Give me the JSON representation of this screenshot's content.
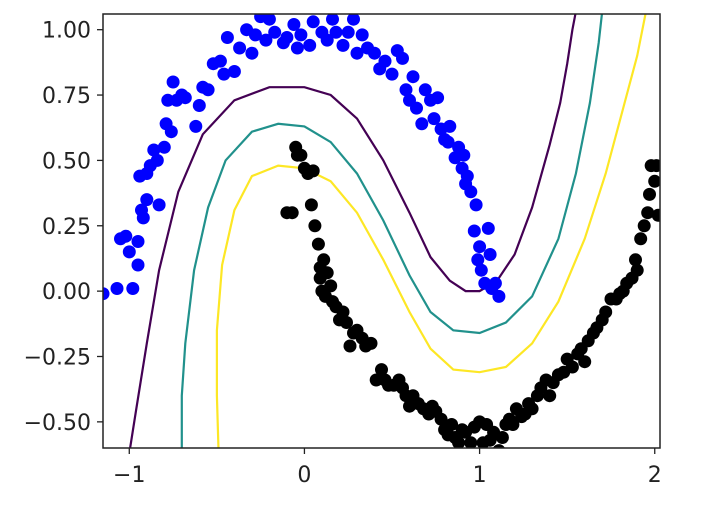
{
  "chart_data": {
    "type": "scatter",
    "title": "",
    "xlabel": "",
    "ylabel": "",
    "xlim": [
      -1.15,
      2.03
    ],
    "ylim": [
      -0.6,
      1.06
    ],
    "grid": false,
    "x_ticks": [
      -1,
      0,
      1,
      2
    ],
    "x_tick_labels": [
      "−1",
      "0",
      "1",
      "2"
    ],
    "y_ticks": [
      1.0,
      0.75,
      0.5,
      0.25,
      0.0,
      -0.25,
      -0.5
    ],
    "y_tick_labels": [
      "1.00",
      "0.75",
      "0.50",
      "0.25",
      "0.00",
      "−0.25",
      "−0.50"
    ],
    "colors": {
      "class_0": "#0000ff",
      "class_1": "#000000",
      "contour_low": "#440154",
      "contour_mid": "#21918c",
      "contour_high": "#fde725",
      "frame": "#222222"
    },
    "series": [
      {
        "points": [
          [
            -1.15,
            -0.01
          ],
          [
            -1.07,
            0.01
          ],
          [
            -1.05,
            0.2
          ],
          [
            -1.02,
            0.21
          ],
          [
            -1.0,
            0.15
          ],
          [
            -0.98,
            0.01
          ],
          [
            -0.95,
            0.19
          ],
          [
            -0.95,
            0.1
          ],
          [
            -0.94,
            0.44
          ],
          [
            -0.93,
            0.31
          ],
          [
            -0.92,
            0.28
          ],
          [
            -0.9,
            0.35
          ],
          [
            -0.9,
            0.45
          ],
          [
            -0.88,
            0.48
          ],
          [
            -0.86,
            0.54
          ],
          [
            -0.84,
            0.5
          ],
          [
            -0.83,
            0.33
          ],
          [
            -0.8,
            0.55
          ],
          [
            -0.79,
            0.64
          ],
          [
            -0.78,
            0.73
          ],
          [
            -0.76,
            0.61
          ],
          [
            -0.75,
            0.8
          ],
          [
            -0.73,
            0.73
          ],
          [
            -0.7,
            0.75
          ],
          [
            -0.68,
            0.74
          ],
          [
            -0.62,
            0.63
          ],
          [
            -0.6,
            0.71
          ],
          [
            -0.58,
            0.78
          ],
          [
            -0.55,
            0.77
          ],
          [
            -0.52,
            0.87
          ],
          [
            -0.48,
            0.88
          ],
          [
            -0.46,
            0.83
          ],
          [
            -0.44,
            0.97
          ],
          [
            -0.4,
            0.84
          ],
          [
            -0.37,
            0.93
          ],
          [
            -0.33,
            1.0
          ],
          [
            -0.3,
            0.91
          ],
          [
            -0.28,
            0.98
          ],
          [
            -0.25,
            1.05
          ],
          [
            -0.22,
            0.96
          ],
          [
            -0.2,
            1.04
          ],
          [
            -0.17,
            0.99
          ],
          [
            -0.12,
            0.95
          ],
          [
            -0.1,
            0.97
          ],
          [
            -0.06,
            1.02
          ],
          [
            -0.04,
            0.93
          ],
          [
            -0.02,
            0.98
          ],
          [
            0.03,
            0.94
          ],
          [
            0.05,
            1.03
          ],
          [
            0.1,
            0.99
          ],
          [
            0.13,
            0.96
          ],
          [
            0.16,
            1.04
          ],
          [
            0.18,
            0.99
          ],
          [
            0.22,
            0.94
          ],
          [
            0.25,
            0.99
          ],
          [
            0.28,
            1.04
          ],
          [
            0.3,
            0.91
          ],
          [
            0.33,
            0.98
          ],
          [
            0.36,
            0.93
          ],
          [
            0.4,
            0.91
          ],
          [
            0.43,
            0.85
          ],
          [
            0.46,
            0.88
          ],
          [
            0.5,
            0.83
          ],
          [
            0.53,
            0.92
          ],
          [
            0.56,
            0.89
          ],
          [
            0.58,
            0.77
          ],
          [
            0.6,
            0.73
          ],
          [
            0.62,
            0.82
          ],
          [
            0.64,
            0.7
          ],
          [
            0.67,
            0.64
          ],
          [
            0.69,
            0.77
          ],
          [
            0.72,
            0.73
          ],
          [
            0.74,
            0.66
          ],
          [
            0.76,
            0.74
          ],
          [
            0.78,
            0.62
          ],
          [
            0.8,
            0.58
          ],
          [
            0.82,
            0.57
          ],
          [
            0.83,
            0.63
          ],
          [
            0.86,
            0.51
          ],
          [
            0.88,
            0.55
          ],
          [
            0.9,
            0.47
          ],
          [
            0.91,
            0.52
          ],
          [
            0.92,
            0.41
          ],
          [
            0.93,
            0.44
          ],
          [
            0.95,
            0.38
          ],
          [
            0.97,
            0.23
          ],
          [
            0.98,
            0.33
          ],
          [
            0.99,
            0.12
          ],
          [
            1.0,
            0.17
          ],
          [
            1.01,
            0.08
          ],
          [
            1.03,
            0.03
          ],
          [
            1.05,
            0.24
          ],
          [
            1.06,
            0.14
          ],
          [
            1.07,
            0.01
          ],
          [
            1.09,
            0.03
          ],
          [
            1.11,
            -0.02
          ]
        ]
      },
      {
        "points": [
          [
            -0.1,
            0.3
          ],
          [
            -0.07,
            0.3
          ],
          [
            -0.05,
            0.55
          ],
          [
            -0.04,
            0.52
          ],
          [
            -0.02,
            0.52
          ],
          [
            0.0,
            0.47
          ],
          [
            0.02,
            0.45
          ],
          [
            0.04,
            0.33
          ],
          [
            0.05,
            0.46
          ],
          [
            0.06,
            0.25
          ],
          [
            0.08,
            0.18
          ],
          [
            0.09,
            0.09
          ],
          [
            0.09,
            0.05
          ],
          [
            0.1,
            0.0
          ],
          [
            0.11,
            0.12
          ],
          [
            0.12,
            -0.02
          ],
          [
            0.13,
            0.07
          ],
          [
            0.15,
            0.02
          ],
          [
            0.16,
            -0.04
          ],
          [
            0.18,
            -0.06
          ],
          [
            0.2,
            -0.11
          ],
          [
            0.22,
            -0.08
          ],
          [
            0.24,
            -0.12
          ],
          [
            0.26,
            -0.21
          ],
          [
            0.28,
            -0.16
          ],
          [
            0.3,
            -0.15
          ],
          [
            0.33,
            -0.18
          ],
          [
            0.35,
            -0.21
          ],
          [
            0.38,
            -0.2
          ],
          [
            0.41,
            -0.34
          ],
          [
            0.44,
            -0.3
          ],
          [
            0.46,
            -0.34
          ],
          [
            0.48,
            -0.36
          ],
          [
            0.51,
            -0.36
          ],
          [
            0.54,
            -0.34
          ],
          [
            0.56,
            -0.37
          ],
          [
            0.58,
            -0.4
          ],
          [
            0.6,
            -0.44
          ],
          [
            0.62,
            -0.4
          ],
          [
            0.65,
            -0.43
          ],
          [
            0.68,
            -0.45
          ],
          [
            0.71,
            -0.47
          ],
          [
            0.73,
            -0.44
          ],
          [
            0.75,
            -0.46
          ],
          [
            0.78,
            -0.49
          ],
          [
            0.8,
            -0.53
          ],
          [
            0.82,
            -0.55
          ],
          [
            0.84,
            -0.51
          ],
          [
            0.86,
            -0.56
          ],
          [
            0.88,
            -0.58
          ],
          [
            0.9,
            -0.53
          ],
          [
            0.92,
            -0.54
          ],
          [
            0.95,
            -0.58
          ],
          [
            0.97,
            -0.52
          ],
          [
            1.0,
            -0.5
          ],
          [
            1.02,
            -0.58
          ],
          [
            1.04,
            -0.51
          ],
          [
            1.06,
            -0.57
          ],
          [
            1.08,
            -0.54
          ],
          [
            1.11,
            -0.61
          ],
          [
            1.13,
            -0.56
          ],
          [
            1.15,
            -0.51
          ],
          [
            1.17,
            -0.49
          ],
          [
            1.19,
            -0.51
          ],
          [
            1.21,
            -0.45
          ],
          [
            1.24,
            -0.48
          ],
          [
            1.26,
            -0.47
          ],
          [
            1.28,
            -0.43
          ],
          [
            1.3,
            -0.45
          ],
          [
            1.33,
            -0.4
          ],
          [
            1.35,
            -0.37
          ],
          [
            1.38,
            -0.34
          ],
          [
            1.4,
            -0.4
          ],
          [
            1.42,
            -0.35
          ],
          [
            1.45,
            -0.32
          ],
          [
            1.48,
            -0.31
          ],
          [
            1.5,
            -0.26
          ],
          [
            1.53,
            -0.29
          ],
          [
            1.56,
            -0.24
          ],
          [
            1.58,
            -0.22
          ],
          [
            1.6,
            -0.27
          ],
          [
            1.62,
            -0.19
          ],
          [
            1.65,
            -0.16
          ],
          [
            1.67,
            -0.14
          ],
          [
            1.7,
            -0.11
          ],
          [
            1.72,
            -0.08
          ],
          [
            1.75,
            -0.03
          ],
          [
            1.78,
            -0.03
          ],
          [
            1.8,
            -0.01
          ],
          [
            1.82,
            0.0
          ],
          [
            1.84,
            0.03
          ],
          [
            1.87,
            0.05
          ],
          [
            1.89,
            0.12
          ],
          [
            1.9,
            0.08
          ],
          [
            1.92,
            0.2
          ],
          [
            1.94,
            0.25
          ],
          [
            1.96,
            0.3
          ],
          [
            1.97,
            0.37
          ],
          [
            1.98,
            0.48
          ],
          [
            2.0,
            0.42
          ],
          [
            2.01,
            0.48
          ],
          [
            2.02,
            0.29
          ]
        ]
      }
    ],
    "contours": [
      {
        "level": "low",
        "points": [
          [
            -1.0,
            -0.62
          ],
          [
            -0.96,
            -0.45
          ],
          [
            -0.9,
            -0.2
          ],
          [
            -0.83,
            0.08
          ],
          [
            -0.72,
            0.38
          ],
          [
            -0.58,
            0.6
          ],
          [
            -0.4,
            0.73
          ],
          [
            -0.2,
            0.78
          ],
          [
            0.0,
            0.78
          ],
          [
            0.15,
            0.75
          ],
          [
            0.3,
            0.66
          ],
          [
            0.45,
            0.5
          ],
          [
            0.6,
            0.3
          ],
          [
            0.72,
            0.13
          ],
          [
            0.83,
            0.04
          ],
          [
            0.92,
            0.0
          ],
          [
            1.0,
            0.0
          ],
          [
            1.1,
            0.04
          ],
          [
            1.2,
            0.14
          ],
          [
            1.3,
            0.32
          ],
          [
            1.4,
            0.56
          ],
          [
            1.46,
            0.72
          ],
          [
            1.5,
            0.87
          ],
          [
            1.53,
            1.0
          ],
          [
            1.55,
            1.07
          ]
        ]
      },
      {
        "level": "mid",
        "points": [
          [
            -0.7,
            -0.62
          ],
          [
            -0.7,
            -0.4
          ],
          [
            -0.68,
            -0.2
          ],
          [
            -0.63,
            0.08
          ],
          [
            -0.55,
            0.32
          ],
          [
            -0.45,
            0.5
          ],
          [
            -0.3,
            0.61
          ],
          [
            -0.15,
            0.64
          ],
          [
            0.0,
            0.63
          ],
          [
            0.15,
            0.57
          ],
          [
            0.3,
            0.45
          ],
          [
            0.45,
            0.27
          ],
          [
            0.6,
            0.06
          ],
          [
            0.72,
            -0.08
          ],
          [
            0.85,
            -0.15
          ],
          [
            1.0,
            -0.16
          ],
          [
            1.15,
            -0.12
          ],
          [
            1.3,
            -0.02
          ],
          [
            1.45,
            0.2
          ],
          [
            1.55,
            0.45
          ],
          [
            1.63,
            0.72
          ],
          [
            1.68,
            0.95
          ],
          [
            1.7,
            1.07
          ]
        ]
      },
      {
        "level": "high",
        "points": [
          [
            -0.49,
            -0.62
          ],
          [
            -0.5,
            -0.4
          ],
          [
            -0.5,
            -0.15
          ],
          [
            -0.47,
            0.1
          ],
          [
            -0.4,
            0.31
          ],
          [
            -0.3,
            0.44
          ],
          [
            -0.15,
            0.48
          ],
          [
            0.0,
            0.47
          ],
          [
            0.15,
            0.42
          ],
          [
            0.3,
            0.3
          ],
          [
            0.45,
            0.12
          ],
          [
            0.6,
            -0.08
          ],
          [
            0.72,
            -0.22
          ],
          [
            0.85,
            -0.3
          ],
          [
            1.0,
            -0.31
          ],
          [
            1.15,
            -0.29
          ],
          [
            1.3,
            -0.2
          ],
          [
            1.45,
            -0.04
          ],
          [
            1.6,
            0.2
          ],
          [
            1.72,
            0.45
          ],
          [
            1.82,
            0.7
          ],
          [
            1.9,
            0.9
          ],
          [
            1.95,
            1.07
          ]
        ]
      }
    ]
  }
}
